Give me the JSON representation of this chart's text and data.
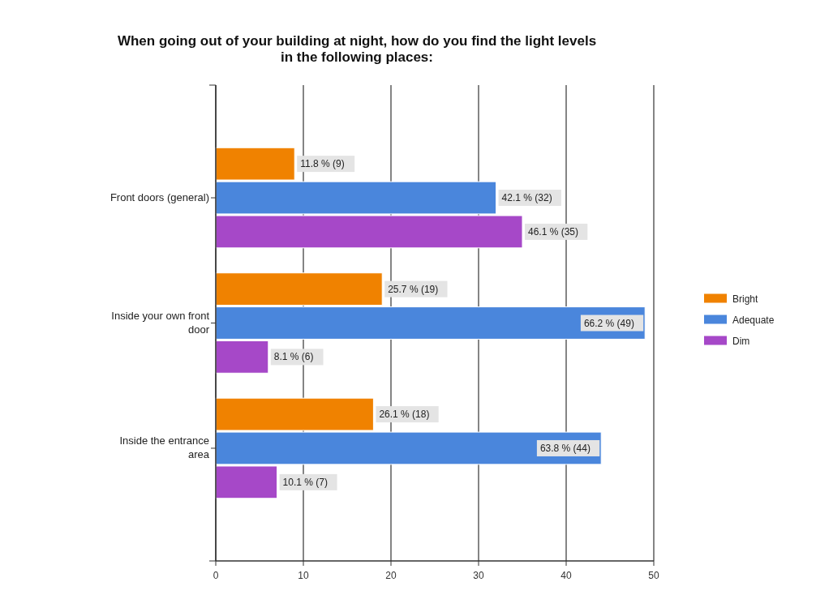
{
  "chart_data": {
    "type": "bar",
    "orientation": "horizontal",
    "title": "When going out of your building at night, how do you find the light levels\nin the following places:",
    "categories": [
      "Front doors (general)",
      "Inside your own front door",
      "Inside the entrance area"
    ],
    "series": [
      {
        "name": "Bright",
        "color": "#f08200",
        "values": [
          9,
          19,
          18
        ],
        "value_labels": [
          "11.8 % (9)",
          "25.7 % (19)",
          "26.1 % (18)"
        ]
      },
      {
        "name": "Adequate",
        "color": "#4a86dc",
        "values": [
          32,
          49,
          44
        ],
        "value_labels": [
          "42.1 % (32)",
          "66.2 % (49)",
          "63.8 % (44)"
        ]
      },
      {
        "name": "Dim",
        "color": "#a648c8",
        "values": [
          35,
          6,
          7
        ],
        "value_labels": [
          "46.1 % (35)",
          "8.1 % (6)",
          "10.1 % (7)"
        ]
      }
    ],
    "xlim": [
      0,
      50
    ],
    "xticks": [
      0,
      10,
      20,
      30,
      40,
      50
    ],
    "grid": "x",
    "legend": "right"
  }
}
